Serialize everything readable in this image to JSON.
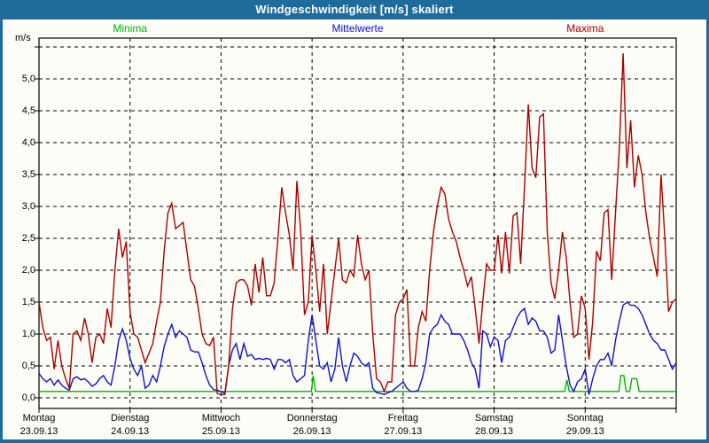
{
  "window": {
    "title": "Windgeschwindigkeit [m/s] skaliert"
  },
  "legend": [
    {
      "label": "Minima",
      "color": "#00b400"
    },
    {
      "label": "Mittelwerte",
      "color": "#1010cc"
    },
    {
      "label": "Maxima",
      "color": "#aa0000"
    }
  ],
  "axes": {
    "unit_label": "m/s",
    "y_ticks": [
      {
        "label": "5,0",
        "value": 5.0
      },
      {
        "label": "4,5",
        "value": 4.5
      },
      {
        "label": "4,0",
        "value": 4.0
      },
      {
        "label": "3,5",
        "value": 3.5
      },
      {
        "label": "3,0",
        "value": 3.0
      },
      {
        "label": "2,5",
        "value": 2.5
      },
      {
        "label": "2,0",
        "value": 2.0
      },
      {
        "label": "1,5",
        "value": 1.5
      },
      {
        "label": "1,0",
        "value": 1.0
      },
      {
        "label": "0,5",
        "value": 0.5
      },
      {
        "label": "0,0",
        "value": 0.0
      }
    ]
  },
  "x_labels": [
    {
      "day": "Montag",
      "date": "23.09.13"
    },
    {
      "day": "Dienstag",
      "date": "24.09.13"
    },
    {
      "day": "Mittwoch",
      "date": "25.09.13"
    },
    {
      "day": "Donnerstag",
      "date": "26.09.13"
    },
    {
      "day": "Freitag",
      "date": "27.09.13"
    },
    {
      "day": "Samstag",
      "date": "28.09.13"
    },
    {
      "day": "Sonntag",
      "date": "29.09.13"
    }
  ],
  "chart_data": {
    "type": "line",
    "title": "Windgeschwindigkeit [m/s] skaliert",
    "x_unit": "hours",
    "x_range": [
      0,
      168
    ],
    "ylim": [
      0,
      5.5
    ],
    "grid_step": 0.5,
    "days": 7,
    "legend_position": "top",
    "series": [
      {
        "name": "Minima",
        "color": "#00b400",
        "points": [
          [
            0,
            0.1
          ],
          [
            71.8,
            0.1
          ],
          [
            72.3,
            0.35
          ],
          [
            72.9,
            0.1
          ],
          [
            138.6,
            0.1
          ],
          [
            139.2,
            0.28
          ],
          [
            139.8,
            0.1
          ],
          [
            152.9,
            0.1
          ],
          [
            153.4,
            0.35
          ],
          [
            154.2,
            0.35
          ],
          [
            154.8,
            0.1
          ],
          [
            155.7,
            0.1
          ],
          [
            156.3,
            0.3
          ],
          [
            157.6,
            0.3
          ],
          [
            158.2,
            0.1
          ],
          [
            168,
            0.1
          ]
        ]
      },
      {
        "name": "Mittelwerte",
        "color": "#1010cc",
        "hourly_values": [
          0.38,
          0.3,
          0.25,
          0.3,
          0.2,
          0.28,
          0.2,
          0.15,
          0.12,
          0.3,
          0.33,
          0.28,
          0.3,
          0.25,
          0.18,
          0.22,
          0.3,
          0.35,
          0.25,
          0.2,
          0.5,
          0.9,
          1.08,
          0.9,
          0.62,
          0.45,
          0.35,
          0.5,
          0.15,
          0.2,
          0.35,
          0.25,
          0.5,
          0.8,
          1.0,
          1.15,
          0.95,
          1.05,
          1.0,
          0.95,
          0.75,
          0.72,
          0.72,
          0.55,
          0.35,
          0.2,
          0.13,
          0.12,
          0.1,
          0.07,
          0.5,
          0.75,
          0.85,
          0.6,
          0.85,
          0.65,
          0.68,
          0.6,
          0.62,
          0.6,
          0.62,
          0.6,
          0.45,
          0.6,
          0.6,
          0.55,
          0.6,
          0.35,
          0.25,
          0.3,
          0.35,
          0.9,
          1.3,
          0.9,
          0.5,
          0.45,
          0.55,
          0.25,
          0.45,
          0.95,
          0.5,
          0.25,
          0.5,
          0.7,
          0.65,
          0.55,
          0.5,
          0.55,
          0.15,
          0.08,
          0.07,
          0.05,
          0.08,
          0.1,
          0.15,
          0.2,
          0.25,
          0.15,
          0.1,
          0.1,
          0.12,
          0.3,
          0.55,
          1.0,
          1.1,
          1.15,
          1.3,
          1.2,
          1.15,
          1.0,
          1.0,
          1.0,
          0.9,
          0.75,
          0.55,
          0.45,
          0.15,
          1.05,
          1.0,
          0.8,
          0.95,
          0.9,
          0.55,
          0.9,
          0.95,
          1.1,
          1.25,
          1.35,
          1.4,
          1.15,
          1.25,
          1.2,
          1.05,
          1.05,
          0.95,
          0.7,
          0.75,
          1.3,
          0.9,
          0.5,
          0.2,
          0.1,
          0.25,
          0.3,
          0.45,
          0.05,
          0.3,
          0.5,
          0.6,
          0.6,
          0.7,
          0.5,
          0.9,
          1.2,
          1.45,
          1.5,
          1.45,
          1.45,
          1.4,
          1.3,
          1.15,
          1.0,
          0.9,
          0.85,
          0.75,
          0.75,
          0.6,
          0.45,
          0.55
        ]
      },
      {
        "name": "Maxima",
        "color": "#aa0000",
        "hourly_values": [
          1.5,
          1.1,
          0.9,
          0.95,
          0.45,
          0.9,
          0.5,
          0.3,
          0.15,
          1.0,
          1.05,
          0.9,
          1.25,
          1.0,
          0.55,
          0.95,
          1.0,
          0.85,
          1.4,
          1.1,
          2.0,
          2.65,
          2.2,
          2.45,
          1.35,
          1.0,
          0.95,
          0.75,
          0.55,
          0.7,
          0.85,
          1.2,
          1.5,
          2.3,
          2.9,
          3.05,
          2.65,
          2.7,
          2.75,
          2.3,
          1.85,
          1.75,
          1.4,
          1.0,
          0.85,
          0.82,
          0.95,
          0.07,
          0.05,
          0.05,
          0.5,
          1.4,
          1.8,
          1.85,
          1.85,
          1.75,
          1.45,
          2.1,
          1.65,
          2.2,
          1.6,
          1.6,
          1.8,
          2.5,
          3.3,
          2.9,
          2.55,
          2.0,
          3.4,
          2.6,
          1.3,
          1.5,
          2.55,
          2.0,
          1.35,
          2.1,
          1.0,
          1.5,
          2.0,
          2.5,
          1.85,
          1.8,
          2.0,
          1.9,
          2.55,
          2.1,
          1.85,
          2.0,
          1.0,
          0.3,
          0.25,
          0.1,
          0.25,
          0.25,
          1.3,
          1.5,
          1.55,
          1.7,
          0.5,
          0.5,
          1.1,
          1.35,
          1.2,
          2.0,
          2.6,
          3.0,
          3.3,
          3.2,
          2.8,
          2.6,
          2.45,
          2.2,
          2.0,
          1.75,
          1.9,
          1.4,
          0.85,
          1.5,
          2.1,
          2.0,
          2.0,
          2.55,
          1.95,
          2.6,
          1.95,
          2.85,
          2.9,
          2.1,
          3.3,
          4.6,
          3.6,
          3.45,
          4.4,
          4.45,
          2.6,
          1.8,
          1.55,
          2.0,
          2.6,
          2.2,
          1.5,
          0.95,
          1.0,
          1.6,
          1.4,
          0.6,
          1.2,
          2.3,
          2.15,
          2.9,
          2.95,
          1.85,
          2.9,
          3.9,
          5.4,
          3.6,
          4.35,
          3.3,
          3.8,
          3.5,
          2.9,
          2.5,
          2.2,
          1.9,
          3.5,
          2.5,
          1.35,
          1.5,
          1.55
        ]
      }
    ]
  }
}
